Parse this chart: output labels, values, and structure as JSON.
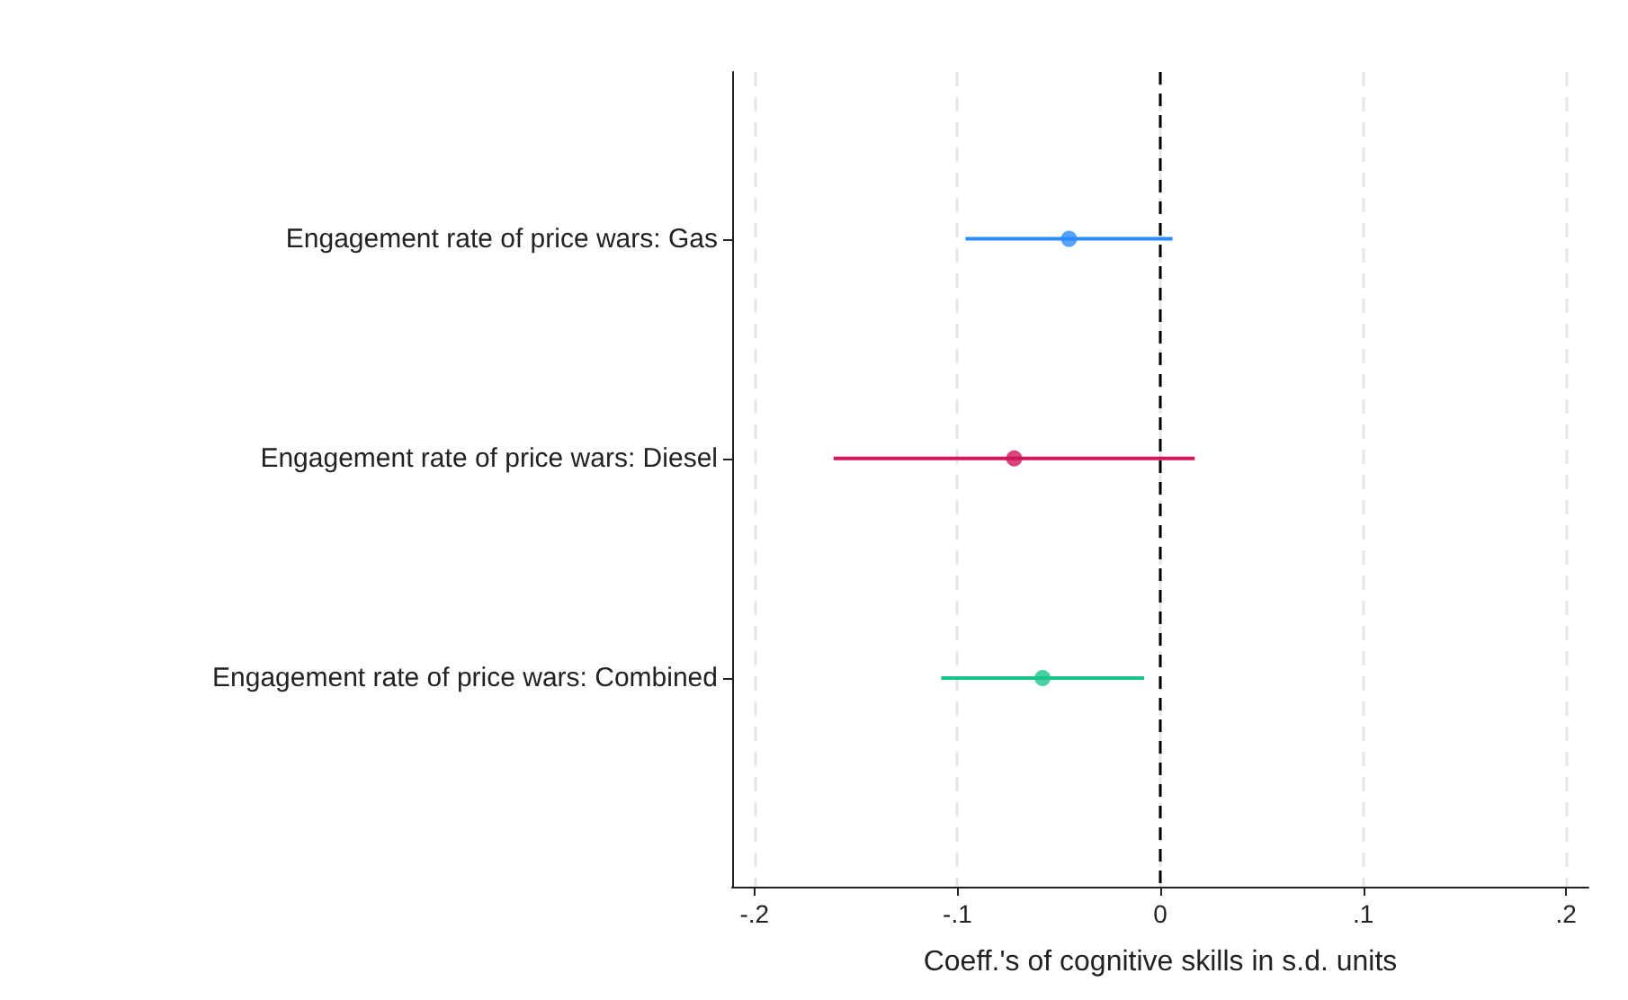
{
  "chart_data": {
    "type": "scatter",
    "orientation": "horizontal",
    "xlabel": "Coeff.'s of cognitive skills in s.d. units",
    "categories": [
      "Engagement rate of price wars: Gas",
      "Engagement rate of price wars: Diesel",
      "Engagement rate of price wars: Combined"
    ],
    "values": [
      -0.045,
      -0.072,
      -0.058
    ],
    "errors": [
      [
        -0.096,
        0.006
      ],
      [
        -0.161,
        0.017
      ],
      [
        -0.108,
        -0.008
      ]
    ],
    "colors": [
      "#2a8cff",
      "#d0155a",
      "#1dc48a"
    ],
    "xlim": [
      -0.211,
      0.211
    ],
    "xticks": [
      {
        "value": -0.2,
        "label": "-.2"
      },
      {
        "value": -0.1,
        "label": "-.1"
      },
      0,
      {
        "value": 0.1,
        "label": ".1"
      },
      {
        "value": 0.2,
        "label": ".2"
      }
    ],
    "grid": "x",
    "marker": "circle",
    "ref_lines": [
      {
        "axis": "x",
        "value": 0,
        "color": "#000000",
        "line_style": "dashed"
      }
    ]
  }
}
